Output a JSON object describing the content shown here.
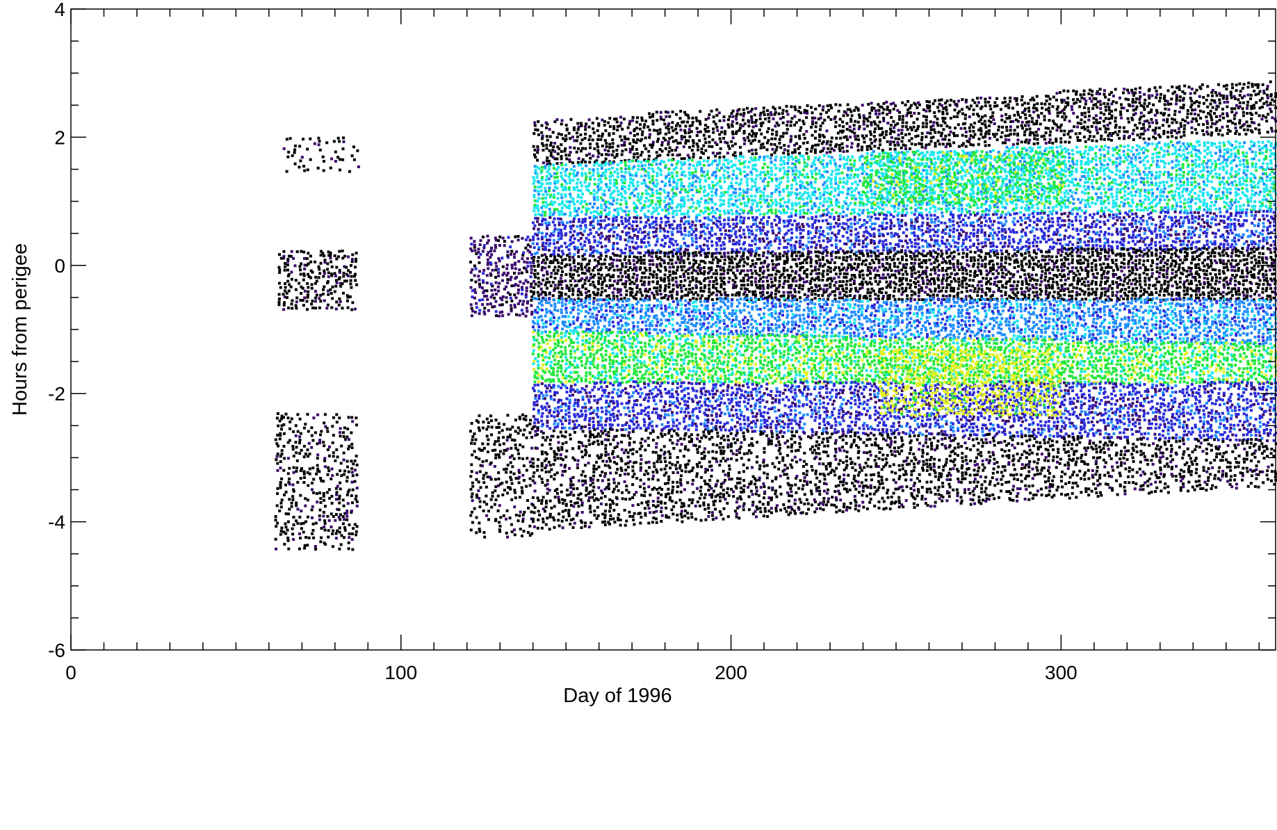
{
  "chart_data": {
    "type": "scatter",
    "title": "",
    "xlabel": "Day of 1996",
    "ylabel": "Hours from perigee",
    "xlim": [
      0,
      365
    ],
    "ylim": [
      -6,
      4
    ],
    "xticks": [
      0,
      100,
      200,
      300
    ],
    "yticks": [
      -6,
      -4,
      -2,
      0,
      2,
      4
    ],
    "xtick_labels": [
      "0",
      "100",
      "200",
      "300"
    ],
    "ytick_labels": [
      "-6",
      "-4",
      "-2",
      "0",
      "2",
      "4"
    ],
    "grid": false,
    "legend": "none",
    "colormap": [
      "#000000",
      "#3a0a6b",
      "#2a2ad8",
      "#1e8cff",
      "#19e6f0",
      "#22e63c",
      "#e0f020"
    ],
    "bands": [
      {
        "x": [
          64,
          87
        ],
        "y": [
          1.5,
          2.0
        ],
        "level": 0,
        "density": 0.3
      },
      {
        "x": [
          63,
          87
        ],
        "y": [
          -0.65,
          0.25
        ],
        "level": 0,
        "density": 0.6
      },
      {
        "x": [
          62,
          87
        ],
        "y": [
          -4.4,
          -2.3
        ],
        "level": 0,
        "density": 0.45
      },
      {
        "x": [
          121,
          140
        ],
        "y": [
          -0.75,
          0.5
        ],
        "level": 1,
        "density": 0.7
      },
      {
        "x": [
          121,
          140
        ],
        "y": [
          -4.2,
          -2.3
        ],
        "level": 0,
        "density": 0.45
      },
      {
        "x": [
          140,
          365
        ],
        "y_start": [
          1.6,
          2.3
        ],
        "y_end": [
          2.1,
          2.9
        ],
        "level": 0,
        "density": 0.7
      },
      {
        "x": [
          140,
          365
        ],
        "y_start": [
          0.8,
          1.6
        ],
        "y_end": [
          0.9,
          2.0
        ],
        "level": 4,
        "density": 0.9
      },
      {
        "x": [
          140,
          365
        ],
        "y_start": [
          0.2,
          0.8
        ],
        "y_end": [
          0.3,
          0.9
        ],
        "level": 2,
        "density": 0.85
      },
      {
        "x": [
          140,
          365
        ],
        "y_start": [
          -0.5,
          0.2
        ],
        "y_end": [
          -0.5,
          0.3
        ],
        "level": 0,
        "density": 0.95
      },
      {
        "x": [
          140,
          365
        ],
        "y_start": [
          -1.0,
          -0.5
        ],
        "y_end": [
          -1.2,
          -0.5
        ],
        "level": 3,
        "density": 0.9
      },
      {
        "x": [
          140,
          365
        ],
        "y_start": [
          -1.8,
          -1.0
        ],
        "y_end": [
          -1.8,
          -1.2
        ],
        "level": 5,
        "density": 0.95
      },
      {
        "x": [
          140,
          365
        ],
        "y_start": [
          -2.5,
          -1.8
        ],
        "y_end": [
          -2.7,
          -1.8
        ],
        "level": 2,
        "density": 0.8
      },
      {
        "x": [
          140,
          365
        ],
        "y_start": [
          -4.1,
          -2.5
        ],
        "y_end": [
          -3.4,
          -2.7
        ],
        "level": 0,
        "density": 0.55
      },
      {
        "x": [
          245,
          300
        ],
        "y": [
          -2.3,
          -1.3
        ],
        "level": 6,
        "density": 0.6
      },
      {
        "x": [
          240,
          300
        ],
        "y": [
          1.0,
          1.8
        ],
        "level": 5,
        "density": 0.6
      }
    ]
  }
}
